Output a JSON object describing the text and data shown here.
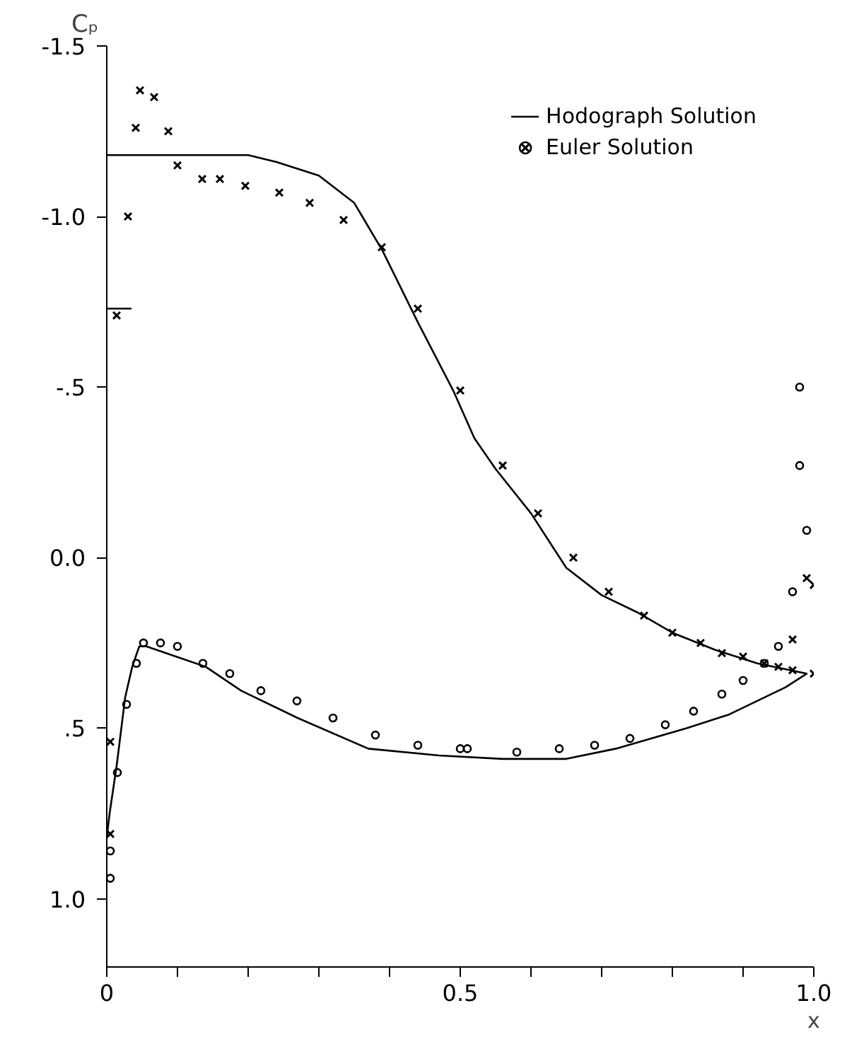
{
  "chart_data": {
    "type": "line",
    "ylabel": "Cₚ",
    "xlabel": "x",
    "xlim": [
      0,
      1.0
    ],
    "ylim": [
      1.2,
      -1.5
    ],
    "xticks": [
      0,
      {
        "value": 0.1,
        "label": null
      },
      {
        "value": 0.2,
        "label": null
      },
      {
        "value": 0.3,
        "label": null
      },
      {
        "value": 0.4,
        "label": null
      },
      0.5,
      {
        "value": 0.6,
        "label": null
      },
      {
        "value": 0.7,
        "label": null
      },
      {
        "value": 0.8,
        "label": null
      },
      {
        "value": 0.9,
        "label": null
      },
      {
        "value": 1.0,
        "label": "1.0"
      }
    ],
    "yticks": [
      -1.5,
      {
        "value": -1.0,
        "label": "-1.0"
      },
      {
        "value": -0.5,
        "label": "-.5"
      },
      {
        "value": 0.0,
        "label": "0.0"
      },
      {
        "value": 0.5,
        "label": ".5"
      },
      {
        "value": 1.0,
        "label": "1.0"
      }
    ],
    "grid": false,
    "legend": "top right",
    "series": [
      {
        "color": "#000000",
        "x": [
          0,
          0.035
        ],
        "values": [
          -0.73,
          -0.73
        ]
      },
      {
        "name": "Hodograph Solution",
        "color": "#000000",
        "line_style": "solid",
        "x": [
          0,
          0.2,
          0.24,
          0.3,
          0.35,
          0.39,
          0.44,
          0.49,
          0.52,
          0.55,
          0.6,
          0.65,
          0.7,
          0.75,
          0.8,
          0.86,
          0.92,
          0.99,
          0.96,
          0.88,
          0.82,
          0.72,
          0.65,
          0.56,
          0.47,
          0.37,
          0.27,
          0.19,
          0.14,
          0.056,
          0.046,
          0.036,
          0.026,
          0.014,
          0.004,
          0
        ],
        "values": [
          -1.18,
          -1.18,
          -1.16,
          -1.12,
          -1.04,
          -0.9,
          -0.69,
          -0.49,
          -0.35,
          -0.26,
          -0.13,
          0.03,
          0.11,
          0.16,
          0.22,
          0.27,
          0.31,
          0.34,
          0.38,
          0.46,
          0.5,
          0.56,
          0.59,
          0.59,
          0.58,
          0.56,
          0.47,
          0.39,
          0.32,
          0.26,
          0.26,
          0.32,
          0.41,
          0.61,
          0.75,
          0.82
        ]
      },
      {
        "name": "Euler Solution",
        "type": "scatter",
        "color": "#000000",
        "marker": "cross",
        "x": [
          0.014,
          0.03,
          0.041,
          0.047,
          0.067,
          0.087,
          0.1,
          0.135,
          0.16,
          0.196,
          0.244,
          0.287,
          0.335,
          0.389,
          0.44,
          0.5,
          0.56,
          0.61,
          0.66,
          0.71,
          0.76,
          0.8,
          0.84,
          0.87,
          0.9,
          0.93,
          0.95,
          0.97,
          1.0,
          0.97,
          0.99,
          1.0,
          0.005,
          0.005
        ],
        "values": [
          -0.71,
          -1.0,
          -1.26,
          -1.37,
          -1.35,
          -1.25,
          -1.15,
          -1.11,
          -1.11,
          -1.09,
          -1.07,
          -1.04,
          -0.99,
          -0.91,
          -0.73,
          -0.49,
          -0.27,
          -0.13,
          0.0,
          0.1,
          0.17,
          0.22,
          0.25,
          0.28,
          0.29,
          0.31,
          0.32,
          0.33,
          0.34,
          0.24,
          0.06,
          0.08,
          0.54,
          0.81
        ]
      },
      {
        "type": "scatter",
        "color": "#000000",
        "marker": "circle",
        "x": [
          0.005,
          0.005,
          0.015,
          0.028,
          0.042,
          0.052,
          0.076,
          0.1,
          0.136,
          0.174,
          0.218,
          0.269,
          0.32,
          0.38,
          0.44,
          0.5,
          0.51,
          0.58,
          0.64,
          0.69,
          0.74,
          0.79,
          0.83,
          0.87,
          0.9,
          0.93,
          0.95,
          0.97,
          0.99,
          0.98,
          0.98
        ],
        "values": [
          0.86,
          0.94,
          0.63,
          0.43,
          0.31,
          0.25,
          0.25,
          0.26,
          0.31,
          0.34,
          0.39,
          0.42,
          0.47,
          0.52,
          0.55,
          0.56,
          0.56,
          0.57,
          0.56,
          0.55,
          0.53,
          0.49,
          0.45,
          0.4,
          0.36,
          0.31,
          0.26,
          0.1,
          -0.08,
          -0.27,
          -0.5
        ]
      }
    ]
  }
}
